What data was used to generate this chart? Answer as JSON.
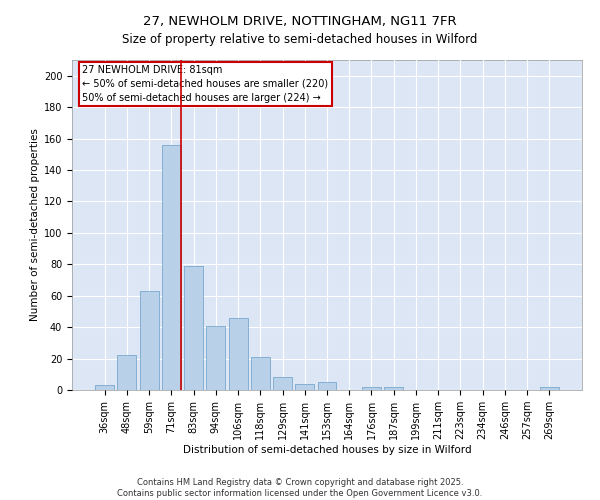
{
  "title": "27, NEWHOLM DRIVE, NOTTINGHAM, NG11 7FR",
  "subtitle": "Size of property relative to semi-detached houses in Wilford",
  "xlabel": "Distribution of semi-detached houses by size in Wilford",
  "ylabel": "Number of semi-detached properties",
  "footer_line1": "Contains HM Land Registry data © Crown copyright and database right 2025.",
  "footer_line2": "Contains public sector information licensed under the Open Government Licence v3.0.",
  "bins": [
    "36sqm",
    "48sqm",
    "59sqm",
    "71sqm",
    "83sqm",
    "94sqm",
    "106sqm",
    "118sqm",
    "129sqm",
    "141sqm",
    "153sqm",
    "164sqm",
    "176sqm",
    "187sqm",
    "199sqm",
    "211sqm",
    "223sqm",
    "234sqm",
    "246sqm",
    "257sqm",
    "269sqm"
  ],
  "counts": [
    3,
    22,
    63,
    156,
    79,
    41,
    46,
    21,
    8,
    4,
    5,
    0,
    2,
    2,
    0,
    0,
    0,
    0,
    0,
    0,
    2
  ],
  "annotation_title": "27 NEWHOLM DRIVE: 81sqm",
  "annotation_line1": "← 50% of semi-detached houses are smaller (220)",
  "annotation_line2": "50% of semi-detached houses are larger (224) →",
  "bar_color": "#b8d0e8",
  "bar_edge_color": "#6a9fc8",
  "vline_color": "#cc0000",
  "annotation_box_color": "#cc0000",
  "background_color": "#dce6f5",
  "grid_color": "#ffffff",
  "ylim": [
    0,
    210
  ],
  "yticks": [
    0,
    20,
    40,
    60,
    80,
    100,
    120,
    140,
    160,
    180,
    200
  ],
  "vline_x": 3.42,
  "title_fontsize": 9.5,
  "subtitle_fontsize": 8.5,
  "axis_label_fontsize": 7.5,
  "tick_fontsize": 7,
  "annotation_fontsize": 7,
  "footer_fontsize": 6
}
